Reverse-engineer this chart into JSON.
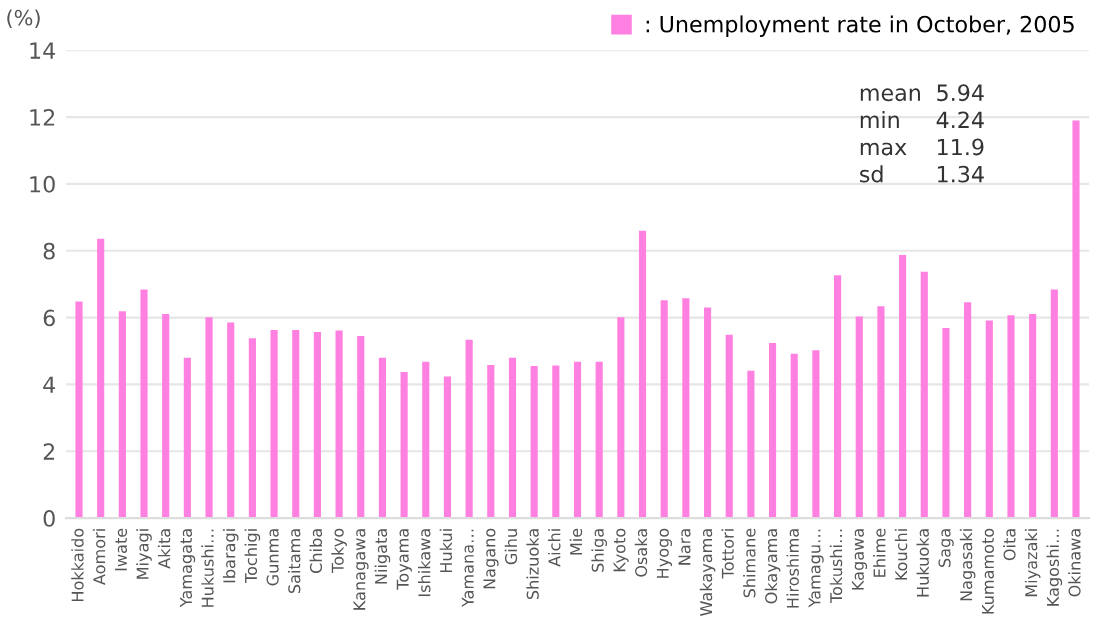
{
  "chart_data": {
    "type": "bar",
    "ylabel": "(%)",
    "categories": [
      "Hokkaido",
      "Aomori",
      "Iwate",
      "Miyagi",
      "Akita",
      "Yamagata",
      "Hukushi…",
      "Ibaragi",
      "Tochigi",
      "Gunma",
      "Saitama",
      "Chiba",
      "Tokyo",
      "Kanagawa",
      "Niigata",
      "Toyama",
      "Ishikawa",
      "Hukui",
      "Yamana…",
      "Nagano",
      "Gihu",
      "Shizuoka",
      "Aichi",
      "Mie",
      "Shiga",
      "Kyoto",
      "Osaka",
      "Hyogo",
      "Nara",
      "Wakayama",
      "Tottori",
      "Shimane",
      "Okayama",
      "Hiroshima",
      "Yamagu…",
      "Tokushi…",
      "Kagawa",
      "Ehime",
      "Kouchi",
      "Hukuoka",
      "Saga",
      "Nagasaki",
      "Kumamoto",
      "Oita",
      "Miyazaki",
      "Kagoshi…",
      "Okinawa"
    ],
    "series": [
      {
        "name": " : Unemployment rate in October, 2005",
        "color": "#ff80e0",
        "values": [
          6.48,
          8.36,
          6.19,
          6.84,
          6.11,
          4.8,
          6.01,
          5.85,
          5.38,
          5.63,
          5.63,
          5.57,
          5.61,
          5.45,
          4.8,
          4.37,
          4.68,
          4.24,
          5.34,
          4.58,
          4.8,
          4.55,
          4.57,
          4.68,
          4.68,
          6.01,
          8.6,
          6.52,
          6.58,
          6.3,
          5.49,
          4.41,
          5.24,
          4.92,
          5.02,
          7.27,
          6.03,
          6.34,
          7.87,
          7.37,
          5.69,
          6.46,
          5.91,
          6.07,
          6.11,
          6.84,
          11.9
        ]
      }
    ],
    "annotations": [
      "mean 5.94",
      "min 4.24",
      "max 11.9",
      "sd 1.34"
    ],
    "ylim": [
      0,
      14
    ],
    "yticks": [
      0,
      2,
      4,
      6,
      8,
      10,
      12,
      14
    ],
    "grid": "y",
    "legend": "top right"
  }
}
